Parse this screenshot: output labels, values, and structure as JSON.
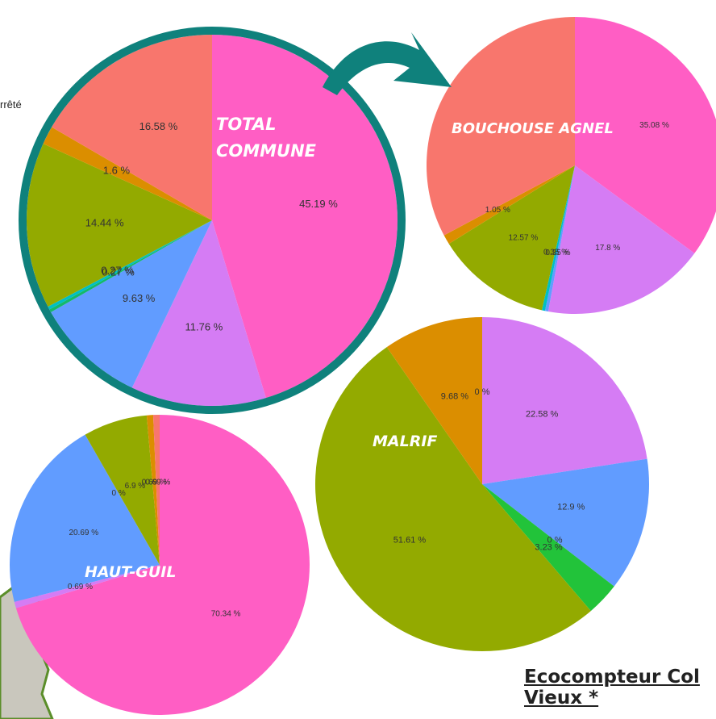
{
  "header": {
    "fragment": "rrêté"
  },
  "footer": {
    "title": "Ecocompteur Col Vieux *"
  },
  "chart_data": [
    {
      "type": "pie",
      "title": "TOTAL COMMUNE",
      "series": [
        {
          "colors": [
            "#ff5ec4",
            "#d57cf4",
            "#619cff",
            "#14b86a",
            "#00bfc4",
            "#93aa00",
            "#db8e00",
            "#f8766d"
          ],
          "values": [
            45.19,
            11.76,
            9.63,
            0.27,
            0.27,
            14.44,
            1.6,
            16.58
          ],
          "value_labels": [
            "45.19 %",
            "11.76 %",
            "9.63 %",
            "0.27 %",
            "0.27 %",
            "14.44 %",
            "1.6 %",
            "16.58 %"
          ]
        }
      ]
    },
    {
      "type": "pie",
      "title": "BOUCHOUSE AGNEL",
      "series": [
        {
          "colors": [
            "#ff5ec4",
            "#d57cf4",
            "#619cff",
            "#00bfc4",
            "#93aa00",
            "#db8e00",
            "#f8766d"
          ],
          "values": [
            35.08,
            17.8,
            0.35,
            0.35,
            12.57,
            1.05,
            32.8
          ],
          "value_labels": [
            "35.08 %",
            "17.8 %",
            "0.35 %",
            "0.35 %",
            "12.57 %",
            "1.05 %",
            null
          ]
        }
      ]
    },
    {
      "type": "pie",
      "title": "MALRIF",
      "series": [
        {
          "colors": [
            "#d57cf4",
            "#619cff",
            "#00bfc4",
            "#22c33a",
            "#93aa00",
            "#db8e00",
            "#ff5ec4"
          ],
          "values": [
            22.58,
            12.9,
            0,
            3.23,
            51.61,
            9.68,
            0
          ],
          "value_labels": [
            "22.58 %",
            "12.9 %",
            "0 %",
            "3.23 %",
            "51.61 %",
            "9.68 %",
            "0 %"
          ]
        }
      ]
    },
    {
      "type": "pie",
      "title": "HAUT-GUIL",
      "series": [
        {
          "colors": [
            "#ff5ec4",
            "#d57cf4",
            "#619cff",
            "#00bfc4",
            "#93aa00",
            "#db8e00",
            "#f8766d"
          ],
          "values": [
            70.34,
            0.69,
            20.69,
            0,
            6.9,
            0.69,
            0.69
          ],
          "value_labels": [
            "70.34 %",
            "0.69 %",
            "20.69 %",
            "0 %",
            "6.9 %",
            "0.69 %",
            "0.69 %"
          ]
        }
      ]
    }
  ]
}
